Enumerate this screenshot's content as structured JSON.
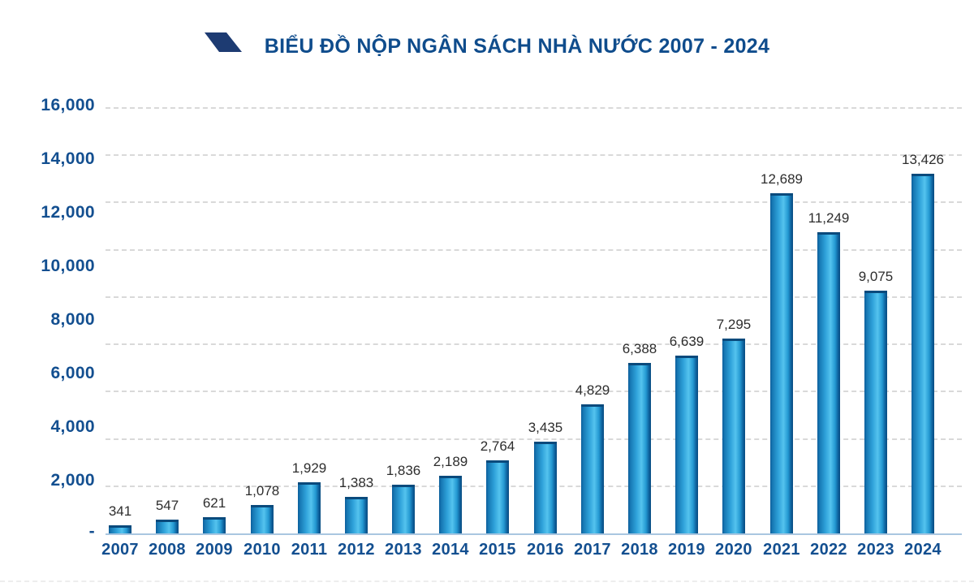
{
  "header": {
    "title": "BIỂU ĐỒ NỘP NGÂN SÁCH NHÀ NƯỚC 2007 - 2024",
    "logo_icon": "blue-parallelogram-swoosh"
  },
  "colors": {
    "background": "#ffffff",
    "title_text": "#0f4c8c",
    "logo_fill": "#1d3b72",
    "axis_tick_text": "#134f90",
    "value_label_text": "#2d2d2d",
    "x_axis_line": "#a9c6e0",
    "gridline": "#d9d9d9",
    "bar_top_cap": "#0a4a7c",
    "bar_gradient": [
      "#0c5e9c",
      "#1779b4",
      "#2fa2da",
      "#54c3ee",
      "#2499d2",
      "#0d5f9b",
      "#084c80"
    ],
    "bar_gradient_stops": [
      0,
      10,
      36,
      58,
      78,
      92,
      100
    ]
  },
  "chart_data": {
    "type": "bar",
    "title": "BIỂU ĐỒ NỘP NGÂN SÁCH NHÀ NƯỚC 2007 - 2024",
    "categories": [
      "2007",
      "2008",
      "2009",
      "2010",
      "2011",
      "2012",
      "2013",
      "2014",
      "2015",
      "2016",
      "2017",
      "2018",
      "2019",
      "2020",
      "2021",
      "2022",
      "2023",
      "2024"
    ],
    "values": [
      341,
      547,
      621,
      1078,
      1929,
      1383,
      1836,
      2189,
      2764,
      3435,
      4829,
      6388,
      6639,
      7295,
      12689,
      11249,
      9075,
      13426
    ],
    "value_labels": [
      "341",
      "547",
      "621",
      "1,078",
      "1,929",
      "1,383",
      "1,836",
      "2,189",
      "2,764",
      "3,435",
      "4,829",
      "6,388",
      "6,639",
      "7,295",
      "12,689",
      "11,249",
      "9,075",
      "13,426"
    ],
    "xlabel": "",
    "ylabel": "",
    "ylim": [
      0,
      16000
    ],
    "ytick_interval": 2000,
    "ytick_labels": [
      "16,000",
      "14,000",
      "12,000",
      "10,000",
      "8,000",
      "6,000",
      "4,000",
      "2,000",
      "-"
    ],
    "grid": "horizontal-dashed",
    "legend": false
  }
}
